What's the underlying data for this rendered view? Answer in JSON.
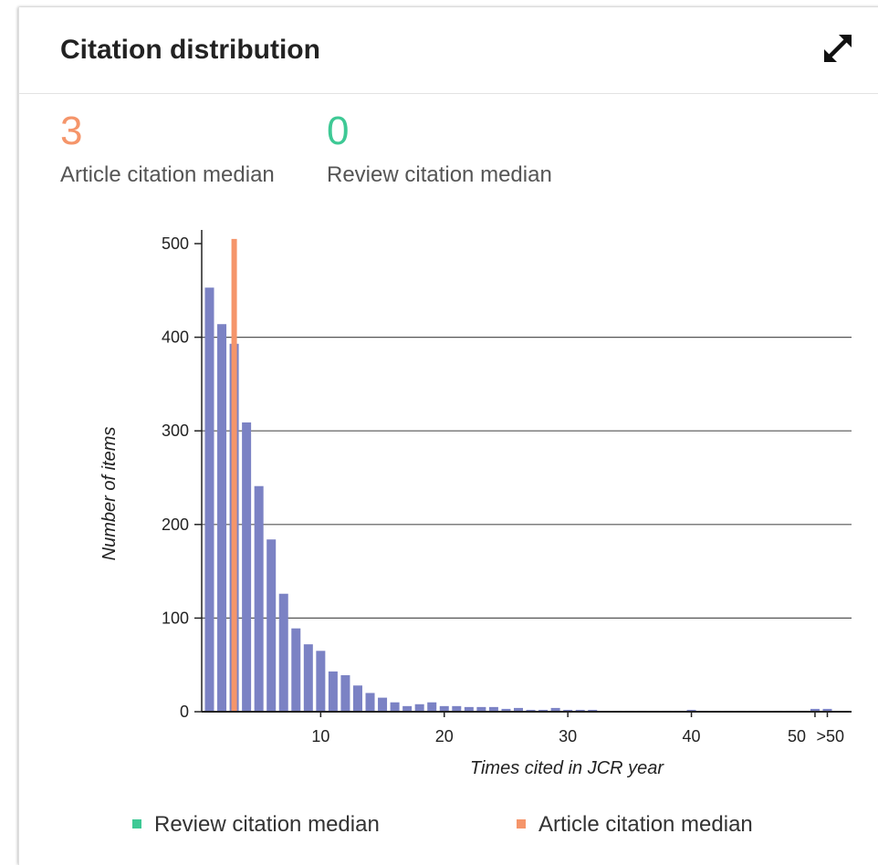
{
  "card": {
    "title": "Citation distribution"
  },
  "stats": {
    "article_median_value": "3",
    "article_median_label": "Article citation median",
    "review_median_value": "0",
    "review_median_label": "Review citation median"
  },
  "colors": {
    "bar": "#7b82c4",
    "article": "#f5956a",
    "review": "#3ec995",
    "grid": "#555555"
  },
  "icons": {
    "expand": "expand-arrows-icon"
  },
  "legend": [
    {
      "label": "Review citation median",
      "color": "#3ec995"
    },
    {
      "label": "Article citation median",
      "color": "#f5956a"
    }
  ],
  "chart_data": {
    "type": "bar",
    "xlabel": "Times cited in JCR year",
    "ylabel": "Number of items",
    "ylim": [
      0,
      500
    ],
    "yticks": [
      0,
      100,
      200,
      300,
      400,
      500
    ],
    "xticks": [
      "10",
      "20",
      "30",
      "40",
      "50",
      ">50"
    ],
    "grid": true,
    "legend_position": "bottom",
    "x": [
      1,
      2,
      3,
      4,
      5,
      6,
      7,
      8,
      9,
      10,
      11,
      12,
      13,
      14,
      15,
      16,
      17,
      18,
      19,
      20,
      21,
      22,
      23,
      24,
      25,
      26,
      27,
      28,
      29,
      30,
      31,
      32,
      33,
      34,
      35,
      36,
      37,
      38,
      39,
      40,
      41,
      42,
      43,
      44,
      45,
      46,
      47,
      48,
      49,
      50,
      ">50"
    ],
    "values": [
      453,
      414,
      393,
      309,
      241,
      184,
      126,
      89,
      72,
      65,
      43,
      39,
      28,
      20,
      15,
      10,
      6,
      8,
      10,
      6,
      6,
      5,
      5,
      5,
      3,
      4,
      2,
      2,
      4,
      2,
      2,
      2,
      1,
      1,
      1,
      1,
      1,
      1,
      1,
      2,
      1,
      1,
      1,
      1,
      1,
      1,
      1,
      1,
      1,
      3,
      3
    ],
    "medians": [
      {
        "name": "Article citation median",
        "x": 3,
        "height": 505
      },
      {
        "name": "Review citation median",
        "x": 0,
        "height": 0
      }
    ]
  }
}
